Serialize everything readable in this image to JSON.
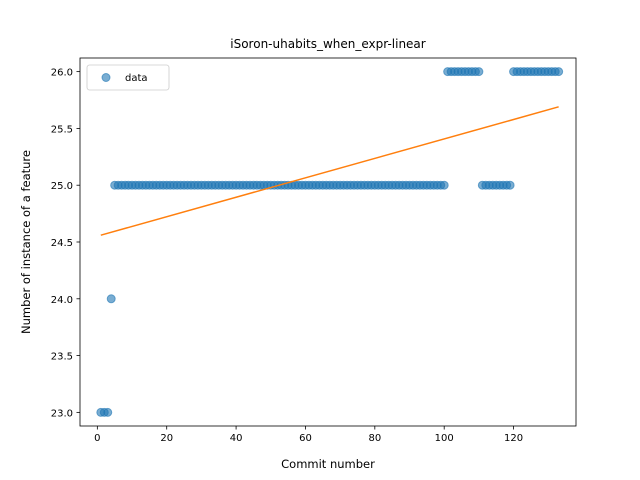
{
  "chart_data": {
    "type": "scatter",
    "title": "iSoron-uhabits_when_expr-linear",
    "xlabel": "Commit number",
    "ylabel": "Number of instance of a feature",
    "xlim": [
      -5,
      138
    ],
    "ylim": [
      22.88,
      26.12
    ],
    "xticks": [
      0,
      20,
      40,
      60,
      80,
      100,
      120
    ],
    "yticks": [
      23.0,
      23.5,
      24.0,
      24.5,
      25.0,
      25.5,
      26.0
    ],
    "grid": false,
    "legend": {
      "placement": "top-left",
      "entries": [
        "data"
      ]
    },
    "colors": {
      "data": "#1f77b4",
      "fit": "#ff7f0e"
    },
    "series": [
      {
        "name": "data",
        "kind": "scatter",
        "x": [
          1,
          2,
          3,
          4,
          5,
          6,
          7,
          8,
          9,
          10,
          11,
          12,
          13,
          14,
          15,
          16,
          17,
          18,
          19,
          20,
          21,
          22,
          23,
          24,
          25,
          26,
          27,
          28,
          29,
          30,
          31,
          32,
          33,
          34,
          35,
          36,
          37,
          38,
          39,
          40,
          41,
          42,
          43,
          44,
          45,
          46,
          47,
          48,
          49,
          50,
          51,
          52,
          53,
          54,
          55,
          56,
          57,
          58,
          59,
          60,
          61,
          62,
          63,
          64,
          65,
          66,
          67,
          68,
          69,
          70,
          71,
          72,
          73,
          74,
          75,
          76,
          77,
          78,
          79,
          80,
          81,
          82,
          83,
          84,
          85,
          86,
          87,
          88,
          89,
          90,
          91,
          92,
          93,
          94,
          95,
          96,
          97,
          98,
          99,
          100,
          101,
          102,
          103,
          104,
          105,
          106,
          107,
          108,
          109,
          110,
          111,
          112,
          113,
          114,
          115,
          116,
          117,
          118,
          119,
          120,
          121,
          122,
          123,
          124,
          125,
          126,
          127,
          128,
          129,
          130,
          131,
          132,
          133
        ],
        "y": [
          23,
          23,
          23,
          24,
          25,
          25,
          25,
          25,
          25,
          25,
          25,
          25,
          25,
          25,
          25,
          25,
          25,
          25,
          25,
          25,
          25,
          25,
          25,
          25,
          25,
          25,
          25,
          25,
          25,
          25,
          25,
          25,
          25,
          25,
          25,
          25,
          25,
          25,
          25,
          25,
          25,
          25,
          25,
          25,
          25,
          25,
          25,
          25,
          25,
          25,
          25,
          25,
          25,
          25,
          25,
          25,
          25,
          25,
          25,
          25,
          25,
          25,
          25,
          25,
          25,
          25,
          25,
          25,
          25,
          25,
          25,
          25,
          25,
          25,
          25,
          25,
          25,
          25,
          25,
          25,
          25,
          25,
          25,
          25,
          25,
          25,
          25,
          25,
          25,
          25,
          25,
          25,
          25,
          25,
          25,
          25,
          25,
          25,
          25,
          25,
          26,
          26,
          26,
          26,
          26,
          26,
          26,
          26,
          26,
          26,
          25,
          25,
          25,
          25,
          25,
          25,
          25,
          25,
          25,
          26,
          26,
          26,
          26,
          26,
          26,
          26,
          26,
          26,
          26,
          26,
          26,
          26,
          26
        ]
      },
      {
        "name": "",
        "kind": "line",
        "x": [
          1,
          133
        ],
        "y": [
          24.56,
          25.69
        ]
      }
    ]
  }
}
